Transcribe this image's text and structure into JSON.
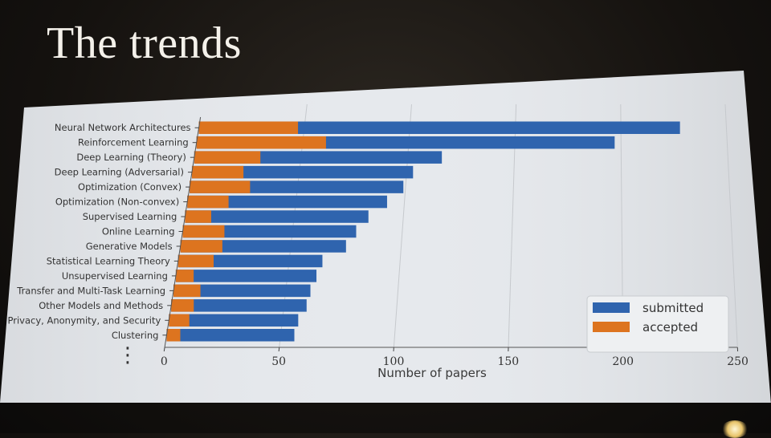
{
  "slide": {
    "title": "The trends",
    "ellipsis": "⋮"
  },
  "colors": {
    "submitted": "#2f64ae",
    "accepted": "#dd741f",
    "screen": "#e7eaee",
    "grid": "#c9ccd0",
    "text": "#333333"
  },
  "chart_data": {
    "type": "bar",
    "orientation": "horizontal",
    "xlabel": "Number of papers",
    "xlim": [
      0,
      250
    ],
    "xticks": [
      0,
      50,
      100,
      150,
      200,
      250
    ],
    "grid": "vertical",
    "legend_position": "bottom-right",
    "categories": [
      "Neural Network Architectures",
      "Reinforcement Learning",
      "Deep Learning (Theory)",
      "Deep Learning (Adversarial)",
      "Optimization (Convex)",
      "Optimization (Non-convex)",
      "Supervised Learning",
      "Online Learning",
      "Generative Models",
      "Statistical Learning Theory",
      "Unsupervised Learning",
      "Transfer and Multi-Task Learning",
      "Other Models and Methods",
      "Privacy, Anonymity, and Security",
      "Clustering"
    ],
    "series": [
      {
        "name": "submitted",
        "values": [
          228,
          197,
          116,
          103,
          99,
          92,
          84,
          79,
          75,
          65,
          63,
          61,
          60,
          57,
          56
        ]
      },
      {
        "name": "accepted",
        "values": [
          47,
          61,
          31,
          24,
          28,
          19,
          12,
          19,
          19,
          16,
          8,
          12,
          10,
          9,
          6
        ]
      }
    ]
  }
}
